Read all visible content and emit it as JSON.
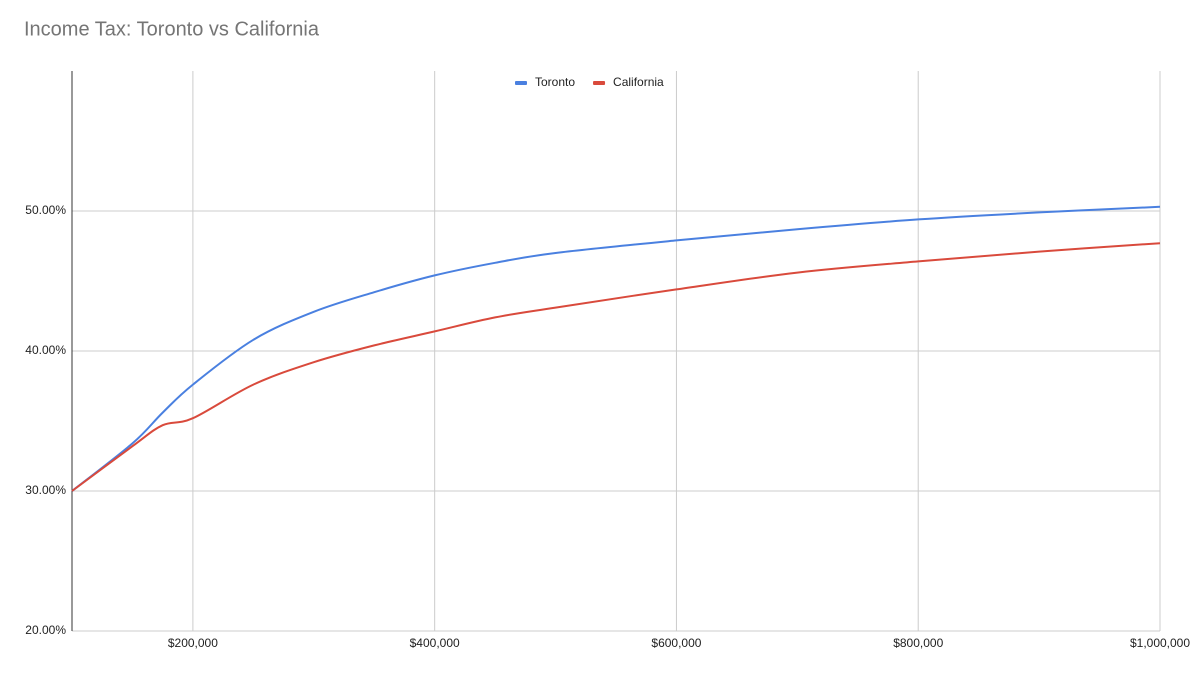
{
  "chart_data": {
    "type": "line",
    "title": "Income Tax: Toronto vs California",
    "x": [
      100000,
      150000,
      175000,
      200000,
      250000,
      300000,
      350000,
      400000,
      450000,
      500000,
      600000,
      700000,
      800000,
      900000,
      1000000
    ],
    "series": [
      {
        "name": "Toronto",
        "color": "#4a80e0",
        "values": [
          30,
          33.4,
          35.6,
          37.6,
          40.8,
          42.8,
          44.2,
          45.4,
          46.3,
          47.0,
          47.9,
          48.7,
          49.4,
          49.9,
          50.3
        ]
      },
      {
        "name": "California",
        "color": "#d94a3c",
        "values": [
          30,
          33.2,
          34.7,
          35.2,
          37.6,
          39.2,
          40.4,
          41.4,
          42.4,
          43.1,
          44.4,
          45.6,
          46.4,
          47.1,
          47.7
        ]
      }
    ],
    "xlim": [
      100000,
      1000000
    ],
    "xticks": [
      {
        "value": 200000,
        "label": "$200,000"
      },
      {
        "value": 400000,
        "label": "$400,000"
      },
      {
        "value": 600000,
        "label": "$600,000"
      },
      {
        "value": 800000,
        "label": "$800,000"
      },
      {
        "value": 1000000,
        "label": "$1,000,000"
      }
    ],
    "ylim": [
      20,
      60
    ],
    "yticks": [
      {
        "value": 20,
        "label": "20.00%"
      },
      {
        "value": 30,
        "label": "30.00%"
      },
      {
        "value": 40,
        "label": "40.00%"
      },
      {
        "value": 50,
        "label": "50.00%"
      }
    ],
    "grid": true,
    "legend": "top"
  }
}
